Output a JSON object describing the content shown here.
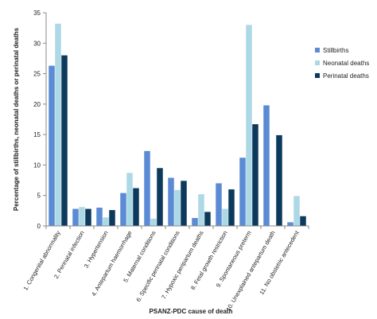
{
  "chart_data": {
    "type": "bar",
    "title": "",
    "xlabel": "PSANZ-PDC cause of death",
    "ylabel": "Percentage of stillbirths, neonatal deaths or perinatal deaths",
    "ylim": [
      0,
      35
    ],
    "yticks": [
      0,
      5,
      10,
      15,
      20,
      25,
      30,
      35
    ],
    "grid": false,
    "legend_position": "right",
    "categories": [
      "1. Congenital abnormality",
      "2. Perinatal infection",
      "3. Hypertension",
      "4. Antepartum haemorrhage",
      "5. Maternal conditions",
      "6. Specific perinatal conditions",
      "7. Hypoxic peripartum deaths",
      "8. Fetal growth restriction",
      "9. Spontaneous preterm",
      "10. Unexplained antepartum death",
      "11. No obstetric antecedent"
    ],
    "series": [
      {
        "name": "Stillbirths",
        "color": "#5b8bd4",
        "values": [
          26.3,
          2.8,
          3.0,
          5.4,
          12.3,
          7.9,
          1.3,
          7.0,
          11.2,
          19.8,
          0.6
        ]
      },
      {
        "name": "Neonatal deaths",
        "color": "#add8e6",
        "values": [
          33.2,
          3.1,
          1.4,
          8.7,
          1.2,
          5.9,
          5.2,
          2.8,
          33.0,
          0.0,
          4.9
        ]
      },
      {
        "name": "Perinatal deaths",
        "color": "#0d3a5c",
        "values": [
          28.0,
          2.8,
          2.6,
          6.2,
          9.5,
          7.4,
          2.3,
          6.0,
          16.7,
          14.9,
          1.6
        ]
      }
    ]
  }
}
